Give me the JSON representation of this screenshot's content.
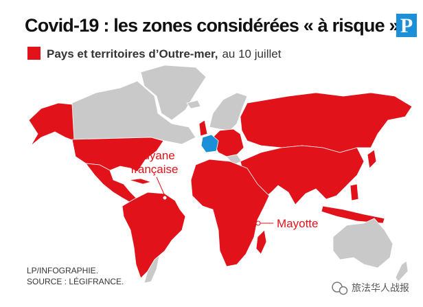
{
  "header": {
    "title": "Covid-19 : les zones considérées « à risque »",
    "logo": "P"
  },
  "legend": {
    "label": "Pays et territoires d’Outre-mer,",
    "date": "au 10 juillet"
  },
  "labels": {
    "guyane": [
      "Guyane",
      "française"
    ],
    "mayotte": "Mayotte"
  },
  "credits": [
    "LP/INFOGRAPHIE.",
    "SOURCE : LÉGIFRANCE."
  ],
  "watermark": "旅法华人战报"
}
